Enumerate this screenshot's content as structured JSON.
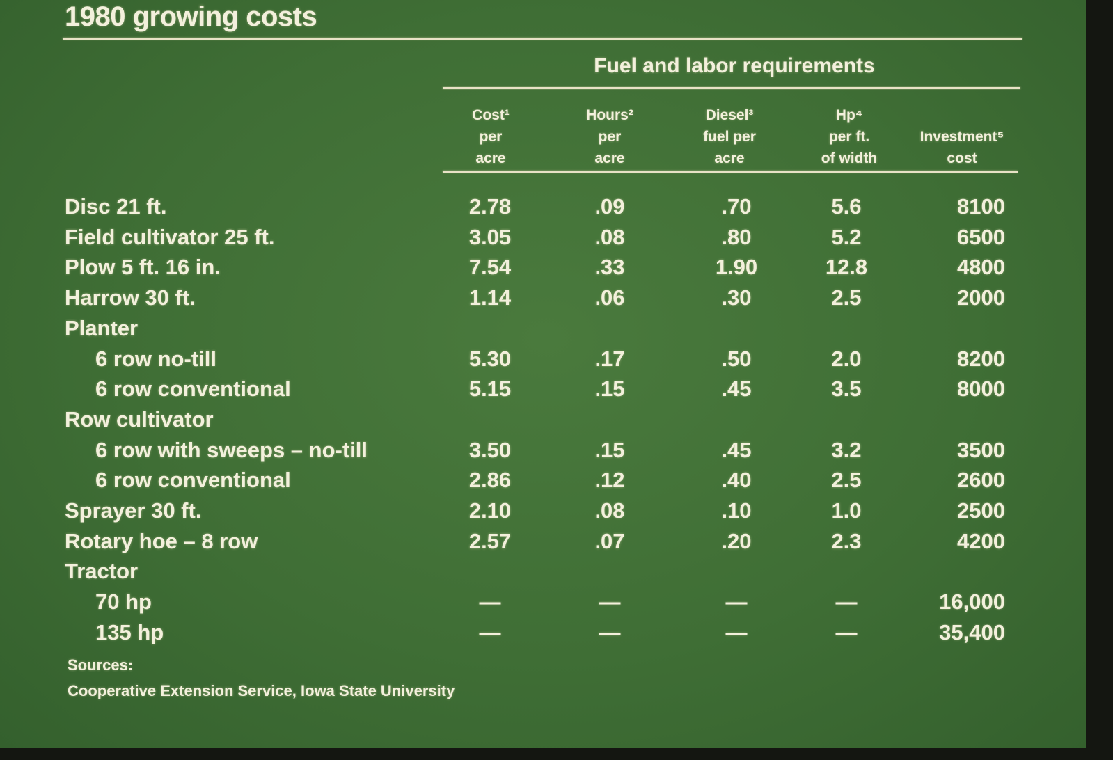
{
  "title": "1980 growing costs",
  "group_header": "Fuel and labor requirements",
  "columns": [
    {
      "line1": "Cost¹",
      "line2": "per",
      "line3": "acre"
    },
    {
      "line1": "Hours²",
      "line2": "per",
      "line3": "acre"
    },
    {
      "line1": "Diesel³",
      "line2": "fuel per",
      "line3": "acre"
    },
    {
      "line1": "Hp⁴",
      "line2": "per ft.",
      "line3": "of width"
    },
    {
      "line1": "",
      "line2": "Investment⁵",
      "line3": "cost"
    }
  ],
  "rows": [
    {
      "label": "Disc 21 ft.",
      "indent": false,
      "cost": "2.78",
      "hours": ".09",
      "diesel": ".70",
      "hp": "5.6",
      "investment": "8100"
    },
    {
      "label": "Field cultivator 25 ft.",
      "indent": false,
      "cost": "3.05",
      "hours": ".08",
      "diesel": ".80",
      "hp": "5.2",
      "investment": "6500"
    },
    {
      "label": "Plow 5 ft. 16 in.",
      "indent": false,
      "cost": "7.54",
      "hours": ".33",
      "diesel": "1.90",
      "hp": "12.8",
      "investment": "4800"
    },
    {
      "label": "Harrow 30 ft.",
      "indent": false,
      "cost": "1.14",
      "hours": ".06",
      "diesel": ".30",
      "hp": "2.5",
      "investment": "2000"
    },
    {
      "label": "Planter",
      "indent": false,
      "cost": "",
      "hours": "",
      "diesel": "",
      "hp": "",
      "investment": ""
    },
    {
      "label": "6 row no-till",
      "indent": true,
      "cost": "5.30",
      "hours": ".17",
      "diesel": ".50",
      "hp": "2.0",
      "investment": "8200"
    },
    {
      "label": "6 row conventional",
      "indent": true,
      "cost": "5.15",
      "hours": ".15",
      "diesel": ".45",
      "hp": "3.5",
      "investment": "8000"
    },
    {
      "label": "Row cultivator",
      "indent": false,
      "cost": "",
      "hours": "",
      "diesel": "",
      "hp": "",
      "investment": ""
    },
    {
      "label": "6 row with sweeps – no-till",
      "indent": true,
      "cost": "3.50",
      "hours": ".15",
      "diesel": ".45",
      "hp": "3.2",
      "investment": "3500"
    },
    {
      "label": "6 row conventional",
      "indent": true,
      "cost": "2.86",
      "hours": ".12",
      "diesel": ".40",
      "hp": "2.5",
      "investment": "2600"
    },
    {
      "label": "Sprayer 30 ft.",
      "indent": false,
      "cost": "2.10",
      "hours": ".08",
      "diesel": ".10",
      "hp": "1.0",
      "investment": "2500"
    },
    {
      "label": "Rotary hoe – 8 row",
      "indent": false,
      "cost": "2.57",
      "hours": ".07",
      "diesel": ".20",
      "hp": "2.3",
      "investment": "4200"
    },
    {
      "label": "Tractor",
      "indent": false,
      "cost": "",
      "hours": "",
      "diesel": "",
      "hp": "",
      "investment": ""
    },
    {
      "label": "70 hp",
      "indent": true,
      "cost": "—",
      "hours": "—",
      "diesel": "—",
      "hp": "—",
      "investment": "16,000"
    },
    {
      "label": "135 hp",
      "indent": true,
      "cost": "—",
      "hours": "—",
      "diesel": "—",
      "hp": "—",
      "investment": "35,400"
    }
  ],
  "sources": {
    "heading": "Sources:",
    "text": "Cooperative Extension Service, Iowa State University"
  }
}
